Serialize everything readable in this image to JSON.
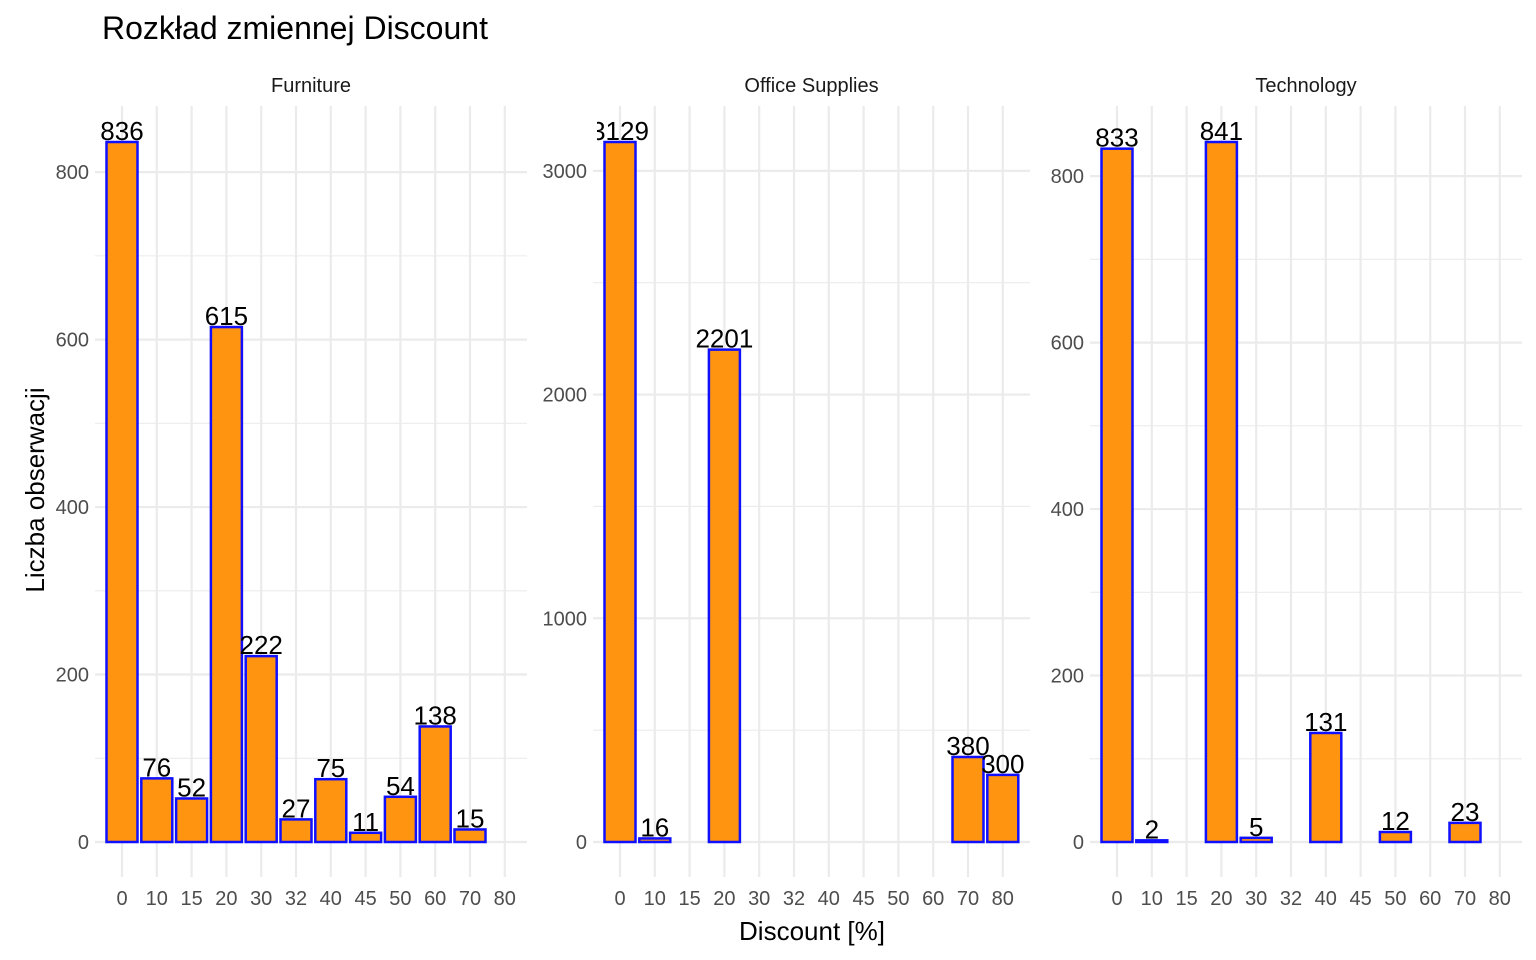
{
  "chart_data": {
    "type": "bar",
    "title": "Rozkład zmiennej Discount",
    "xlabel": "Discount [%]",
    "ylabel": "Liczba obserwacji",
    "categories": [
      "0",
      "10",
      "15",
      "20",
      "30",
      "32",
      "40",
      "45",
      "50",
      "60",
      "70",
      "80"
    ],
    "panels": [
      {
        "name": "Furniture",
        "ylim": [
          0,
          880
        ],
        "yticks": [
          0,
          200,
          400,
          600,
          800
        ],
        "series": [
          {
            "values": [
              836,
              76,
              52,
              615,
              222,
              27,
              75,
              11,
              54,
              138,
              15,
              null
            ]
          }
        ]
      },
      {
        "name": "Office Supplies",
        "ylim": [
          0,
          3270
        ],
        "yticks": [
          0,
          1000,
          2000,
          3000
        ],
        "series": [
          {
            "values": [
              3129,
              16,
              null,
              2201,
              null,
              null,
              null,
              null,
              null,
              null,
              380,
              300
            ]
          }
        ]
      },
      {
        "name": "Technology",
        "ylim": [
          0,
          884
        ],
        "yticks": [
          0,
          200,
          400,
          600,
          800
        ],
        "series": [
          {
            "values": [
              833,
              2,
              null,
              841,
              5,
              null,
              131,
              null,
              12,
              null,
              23,
              null
            ]
          }
        ]
      }
    ],
    "bar_fill": "#ff9410",
    "bar_outline": "#1010ff",
    "grid": true,
    "legend": "none"
  }
}
